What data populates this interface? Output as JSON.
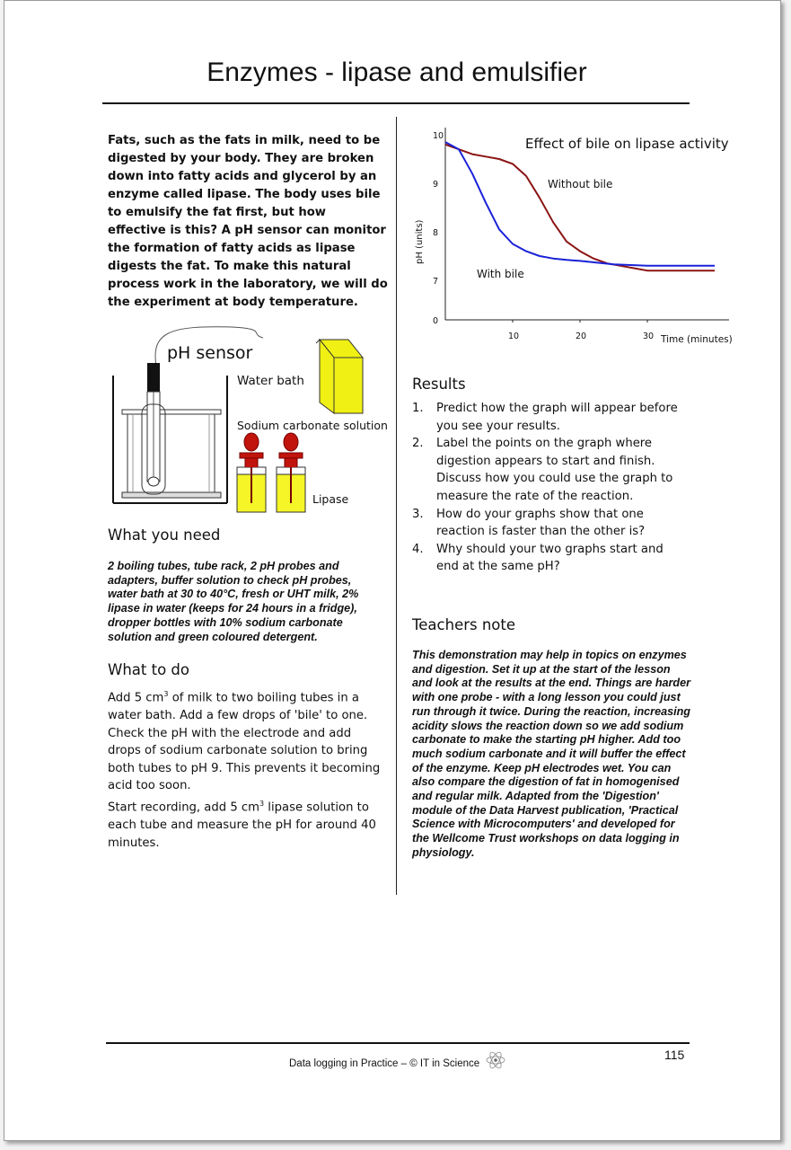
{
  "title": "Enzymes - lipase and emulsifier",
  "intro": "Fats, such as the fats in milk, need to be digested by your body. They are broken down into fatty acids and glycerol by an enzyme called lipase. The body uses bile to emulsify the fat first, but how effective is this? A pH sensor can monitor the formation of fatty acids as lipase digests the fat. To make this natural process work in the laboratory, we will do the experiment at body temperature.",
  "diagram": {
    "ph_sensor": "pH sensor",
    "water_bath": "Water bath",
    "sodium_carbonate": "Sodium carbonate solution",
    "lipase": "Lipase",
    "icons": [
      "ph-probe-icon",
      "water-bath-icon",
      "milk-carton-icon",
      "dropper-bottle-icon"
    ],
    "colors": {
      "liquid": "#f5f527",
      "dropper": "#c0140c",
      "carton": "#f0f014"
    }
  },
  "what_you_need": {
    "heading": "What you need",
    "text": "2 boiling tubes, tube rack, 2 pH probes and adapters, buffer solution to check pH probes, water bath at 30 to 40°C, fresh or UHT milk, 2% lipase in water (keeps for 24 hours in a fridge), dropper bottles with 10% sodium carbonate solution and green coloured detergent."
  },
  "what_to_do": {
    "heading": "What to do",
    "p1_a": "Add 5 cm",
    "p1_sup": "3",
    "p1_b": " of milk to two boiling tubes in a water bath. Add a few drops of 'bile' to one. Check the pH with the electrode and add drops of sodium carbonate solution to bring both tubes to pH 9. This prevents it becoming acid too soon.",
    "p2_a": "Start recording, add 5 cm",
    "p2_sup": "3",
    "p2_b": " lipase solution to each tube and measure the pH for around 40 minutes."
  },
  "results": {
    "heading": "Results",
    "items": [
      {
        "num": "1.",
        "text": "Predict how the graph will appear before you see your results."
      },
      {
        "num": "2.",
        "text": "Label the points on the graph where digestion appears to start and finish. Discuss how you could use the graph to measure the rate of the reaction."
      },
      {
        "num": "3.",
        "text": "How do your graphs show that one reaction is faster than the other is?"
      },
      {
        "num": "4.",
        "text": "Why should your two graphs start and end at the same pH?"
      }
    ]
  },
  "teachers_note": {
    "heading": "Teachers note",
    "text": "This demonstration may help in topics on enzymes and digestion. Set it up at the start of the lesson and look at the results at the end. Things are harder with one probe - with a long lesson you could just run through it twice. During the reaction, increasing acidity slows the reaction down so we add sodium carbonate to make the starting pH higher. Add too much sodium carbonate and it will buffer the effect of the enzyme. Keep pH electrodes wet. You can also compare the digestion of fat in homogenised and regular milk. Adapted from the 'Digestion' module of the Data Harvest publication, 'Practical Science with Microcomputers' and developed for the Wellcome Trust workshops on data logging in physiology."
  },
  "chart_data": {
    "type": "line",
    "title": "Effect of bile on lipase activity",
    "xlabel": "Time (minutes)",
    "ylabel": "pH (units)",
    "x_ticks": [
      "10",
      "20",
      "30"
    ],
    "y_ticks": [
      "0",
      "7",
      "8",
      "9",
      "10"
    ],
    "xlim": [
      0,
      40
    ],
    "ylim": [
      6.2,
      10
    ],
    "y_axis_break": true,
    "grid": false,
    "series": [
      {
        "name": "Without bile",
        "color": "#8b1414",
        "x": [
          0,
          2,
          4,
          6,
          8,
          10,
          12,
          14,
          16,
          18,
          20,
          22,
          24,
          26,
          28,
          30,
          35,
          40
        ],
        "y": [
          9.8,
          9.7,
          9.6,
          9.55,
          9.5,
          9.4,
          9.15,
          8.7,
          8.2,
          7.8,
          7.6,
          7.45,
          7.35,
          7.3,
          7.25,
          7.2,
          7.2,
          7.2
        ]
      },
      {
        "name": "With bile",
        "color": "#1a22d8",
        "x": [
          0,
          2,
          4,
          6,
          8,
          10,
          12,
          14,
          16,
          18,
          20,
          25,
          30,
          40
        ],
        "y": [
          9.85,
          9.7,
          9.2,
          8.6,
          8.05,
          7.75,
          7.6,
          7.5,
          7.45,
          7.42,
          7.4,
          7.33,
          7.3,
          7.3
        ]
      }
    ]
  },
  "footer": {
    "page_number": "115",
    "text": "Data logging in Practice – © IT in Science",
    "logo_icon": "atom-icon"
  }
}
